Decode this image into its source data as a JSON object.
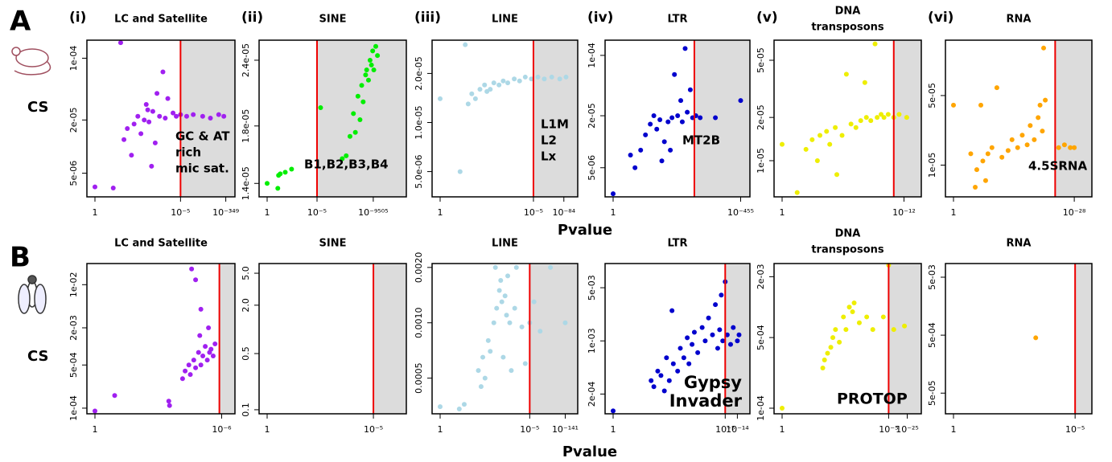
{
  "figure": {
    "rows": [
      {
        "label": "A",
        "group": "CS",
        "xlabel": "Pvalue"
      },
      {
        "label": "B",
        "group": "CS",
        "xlabel": "Pvalue"
      }
    ]
  },
  "chart_data": [
    {
      "type": "scatter",
      "panel": "(i)",
      "title": [
        "LC and Satellite"
      ],
      "color": "#a020f0",
      "ylog": true,
      "threshold": 5,
      "annotation": [
        "GC & AT",
        "rich",
        "mic sat."
      ],
      "xlim": [
        0,
        380
      ],
      "xticks": [
        {
          "value": 0,
          "label": "1"
        },
        {
          "value": 5,
          "label": "10⁻⁵"
        },
        {
          "value": 349,
          "label": "10⁻³⁴⁹"
        }
      ],
      "ylim": [
        2.7e-06,
        0.00016
      ],
      "yticks": [
        {
          "value": 5e-06,
          "label": "5e-06"
        },
        {
          "value": 2e-05,
          "label": "2e-05"
        },
        {
          "value": 0.0001,
          "label": "1e-04"
        }
      ],
      "x": [
        0,
        1e-06,
        3e-05,
        0.0001,
        0.0003,
        0.001,
        0.002,
        0.005,
        0.01,
        0.02,
        0.03,
        0.05,
        0.08,
        0.1,
        0.2,
        0.3,
        0.5,
        0.7,
        1,
        2,
        3,
        5,
        10,
        20,
        50,
        100,
        200,
        300,
        0.15,
        0.04
      ],
      "y": [
        3.5e-06,
        3.4e-06,
        0.00015,
        1.2e-05,
        1.6e-05,
        8e-06,
        1.8e-05,
        2.2e-05,
        1.4e-05,
        2e-05,
        3e-05,
        1.9e-05,
        6e-06,
        2.5e-05,
        4e-05,
        2.2e-05,
        7e-05,
        2.1e-05,
        3.5e-05,
        2.4e-05,
        2.2e-05,
        2.3e-05,
        2.2e-05,
        2.3e-05,
        2.2e-05,
        2.1e-05,
        2.3e-05,
        2.2e-05,
        1.1e-05,
        2.6e-05
      ]
    },
    {
      "type": "scatter",
      "panel": "(ii)",
      "title": [
        "SINE"
      ],
      "color": "#00ee00",
      "ylog": true,
      "threshold": 5,
      "annotation": [
        "B1,B2,B3,B4"
      ],
      "xlim": [
        0,
        79000
      ],
      "xticks": [
        {
          "value": 0,
          "label": "1"
        },
        {
          "value": 5,
          "label": "10⁻⁵"
        },
        {
          "value": 9505,
          "label": "10⁻⁹⁵⁰⁵"
        }
      ],
      "ylim": [
        1.32e-05,
        2.62e-05
      ],
      "yticks": [
        {
          "value": 1.4e-05,
          "label": "1.4e-05"
        },
        {
          "value": 1.8e-05,
          "label": "1.8e-05"
        },
        {
          "value": 2.4e-05,
          "label": "2.4e-05"
        }
      ],
      "x": [
        0,
        1e-06,
        2e-06,
        8e-06,
        0.0002,
        0.004,
        10,
        300,
        500,
        800,
        1200,
        1500,
        2000,
        2500,
        3000,
        3500,
        4500,
        5000,
        6000,
        7000,
        8000,
        9000,
        10000,
        12000,
        14000
      ],
      "y": [
        1.4e-05,
        1.37e-05,
        1.45e-05,
        1.46e-05,
        1.47e-05,
        1.49e-05,
        1.95e-05,
        1.56e-05,
        1.58e-05,
        1.72e-05,
        1.9e-05,
        1.75e-05,
        2.05e-05,
        1.85e-05,
        2.15e-05,
        2e-05,
        2.25e-05,
        2.3e-05,
        2.2e-05,
        2.4e-05,
        2.35e-05,
        2.5e-05,
        2.3e-05,
        2.55e-05,
        2.45e-05
      ]
    },
    {
      "type": "scatter",
      "panel": "(iii)",
      "title": [
        "LINE"
      ],
      "color": "#add8e6",
      "ylog": true,
      "threshold": 5,
      "annotation": [
        "L1M",
        "L2",
        "Lx"
      ],
      "xlim": [
        0,
        133
      ],
      "xticks": [
        {
          "value": 0,
          "label": "1"
        },
        {
          "value": 5,
          "label": "10⁻⁵"
        },
        {
          "value": 84,
          "label": "10⁻⁸⁴"
        }
      ],
      "ylim": [
        3.5e-06,
        3.2e-05
      ],
      "yticks": [
        {
          "value": 5e-06,
          "label": "5.0e-06"
        },
        {
          "value": 1e-05,
          "label": "1.0e-05"
        },
        {
          "value": 2e-05,
          "label": "2.0e-05"
        }
      ],
      "x": [
        0,
        1e-06,
        1e-05,
        3e-05,
        0.0001,
        0.0003,
        0.001,
        0.003,
        0.005,
        0.01,
        0.02,
        0.05,
        0.1,
        0.2,
        0.5,
        1,
        2,
        4,
        8,
        15,
        30,
        60,
        100
      ],
      "y": [
        1.4e-05,
        5e-06,
        3e-05,
        1.3e-05,
        1.5e-05,
        1.4e-05,
        1.6e-05,
        1.7e-05,
        1.55e-05,
        1.6e-05,
        1.75e-05,
        1.7e-05,
        1.8e-05,
        1.75e-05,
        1.85e-05,
        1.8e-05,
        1.9e-05,
        1.85e-05,
        1.9e-05,
        1.85e-05,
        1.9e-05,
        1.85e-05,
        1.9e-05
      ]
    },
    {
      "type": "scatter",
      "panel": "(iv)",
      "title": [
        "LTR"
      ],
      "color": "#0000cd",
      "ylog": true,
      "threshold": 5,
      "annotation": [
        "MT2B"
      ],
      "xlim": [
        0,
        500
      ],
      "xticks": [
        {
          "value": 0,
          "label": "1"
        },
        {
          "value": 455,
          "label": "10⁻⁴⁵⁵"
        }
      ],
      "ylim": [
        2.3e-06,
        0.00015
      ],
      "yticks": [
        {
          "value": 5e-06,
          "label": "5e-06"
        },
        {
          "value": 2e-05,
          "label": "2e-05"
        },
        {
          "value": 0.0001,
          "label": "1e-04"
        }
      ],
      "x": [
        0,
        1e-06,
        1e-05,
        0.0001,
        0.0005,
        0.002,
        0.005,
        0.01,
        0.02,
        0.03,
        0.05,
        0.1,
        0.15,
        0.2,
        0.3,
        0.5,
        0.8,
        1,
        1.5,
        2,
        3,
        4,
        6,
        10,
        50,
        455
      ],
      "y": [
        2.5e-06,
        7e-06,
        5e-06,
        8e-06,
        1.2e-05,
        1.6e-05,
        2e-05,
        1.4e-05,
        1.8e-05,
        6e-06,
        1e-05,
        1.7e-05,
        8e-06,
        1.9e-05,
        6e-05,
        2e-05,
        3e-05,
        1.7e-05,
        0.00012,
        2.2e-05,
        4e-05,
        1.9e-05,
        2e-05,
        1.9e-05,
        1.9e-05,
        3e-05
      ]
    },
    {
      "type": "scatter",
      "panel": "(v)",
      "title": [
        "DNA",
        "transposons"
      ],
      "color": "#eeee00",
      "ylog": true,
      "threshold": 5,
      "xlim": [
        0,
        25
      ],
      "xticks": [
        {
          "value": 0,
          "label": "1"
        },
        {
          "value": 12,
          "label": "10⁻¹²"
        }
      ],
      "ylim": [
        5.6e-06,
        6.9e-05
      ],
      "yticks": [
        {
          "value": 1e-05,
          "label": "1e-05"
        },
        {
          "value": 2e-05,
          "label": "2e-05"
        },
        {
          "value": 5e-05,
          "label": "5e-05"
        }
      ],
      "x": [
        0,
        1e-08,
        1e-06,
        1e-05,
        5e-05,
        0.0001,
        0.0005,
        0.001,
        0.003,
        0.004,
        0.01,
        0.02,
        0.04,
        0.08,
        0.15,
        0.25,
        0.3,
        0.5,
        0.8,
        1,
        1.5,
        2,
        3,
        5,
        8,
        15
      ],
      "y": [
        1.3e-05,
        6e-06,
        1.2e-05,
        1.4e-05,
        1e-05,
        1.5e-05,
        1.6e-05,
        1.3e-05,
        1.7e-05,
        8e-06,
        1.5e-05,
        4e-05,
        1.8e-05,
        1.7e-05,
        1.9e-05,
        3.5e-05,
        2e-05,
        1.9e-05,
        6.5e-05,
        2e-05,
        2.1e-05,
        2e-05,
        2.1e-05,
        2e-05,
        2.1e-05,
        2e-05
      ]
    },
    {
      "type": "scatter",
      "panel": "(vi)",
      "title": [
        "RNA"
      ],
      "color": "#ffa500",
      "ylog": true,
      "threshold": 5,
      "annotation": [
        "4.5SRNA"
      ],
      "xlim": [
        0,
        60
      ],
      "xticks": [
        {
          "value": 0,
          "label": "1"
        },
        {
          "value": 28,
          "label": "10⁻²⁸"
        }
      ],
      "ylim": [
        4.8e-06,
        0.00018
      ],
      "yticks": [
        {
          "value": 1e-05,
          "label": "1e-05"
        },
        {
          "value": 5e-05,
          "label": "5e-05"
        }
      ],
      "x": [
        0,
        1e-07,
        1e-06,
        2e-06,
        1e-05,
        2e-05,
        5e-05,
        0.0001,
        0.0003,
        0.001,
        0.003,
        0.01,
        0.02,
        0.05,
        0.1,
        0.2,
        0.3,
        0.5,
        0.8,
        1,
        1.3,
        1.5,
        1.8,
        7,
        12,
        20,
        28
      ],
      "y": [
        4e-05,
        1.3e-05,
        6e-06,
        9e-06,
        4e-05,
        1.1e-05,
        7e-06,
        1.3e-05,
        1.5e-05,
        6e-05,
        1.2e-05,
        1.4e-05,
        1.8e-05,
        1.5e-05,
        2e-05,
        1.6e-05,
        2.5e-05,
        1.8e-05,
        3e-05,
        4e-05,
        2.2e-05,
        0.00015,
        4.5e-05,
        1.5e-05,
        1.6e-05,
        1.5e-05,
        1.5e-05
      ]
    },
    {
      "type": "scatter",
      "title": [
        "LC and Satellite"
      ],
      "color": "#a020f0",
      "ylog": true,
      "threshold": 5,
      "xlim": [
        0,
        9
      ],
      "xticks": [
        {
          "value": 0,
          "label": "1"
        },
        {
          "value": 6,
          "label": "10⁻⁶"
        }
      ],
      "ylim": [
        8.1e-05,
        0.022
      ],
      "yticks": [
        {
          "value": 0.0001,
          "label": "1e-04"
        },
        {
          "value": 0.0005,
          "label": "5e-04"
        },
        {
          "value": 0.002,
          "label": "2e-03"
        },
        {
          "value": 0.01,
          "label": "1e-02"
        }
      ],
      "x": [
        0,
        5e-08,
        0.027,
        0.03,
        0.15,
        0.2,
        0.3,
        0.35,
        0.5,
        0.6,
        0.8,
        0.9,
        1,
        1.2,
        1.5,
        1.8,
        2,
        2.2,
        2.5,
        3,
        3.5,
        0.4,
        0.6,
        1
      ],
      "y": [
        9e-05,
        0.00016,
        0.00013,
        0.00011,
        0.0003,
        0.0004,
        0.0005,
        0.00035,
        0.0006,
        0.00045,
        0.0008,
        0.0015,
        0.0005,
        0.0007,
        0.001,
        0.0006,
        0.002,
        0.0008,
        0.0009,
        0.0007,
        0.0011,
        0.018,
        0.012,
        0.004
      ]
    },
    {
      "type": "scatter",
      "title": [
        "SINE"
      ],
      "color": "#00ee00",
      "ylog": true,
      "threshold": 5,
      "xlim": [
        0,
        41
      ],
      "xticks": [
        {
          "value": 0,
          "label": "1"
        },
        {
          "value": 5,
          "label": "10⁻⁵"
        }
      ],
      "ylim": [
        0.089,
        6.6
      ],
      "yticks": [
        0.1,
        0.5,
        {
          "value": 2,
          "label": "2.0"
        },
        {
          "value": 5,
          "label": "5.0"
        }
      ],
      "x": [],
      "y": []
    },
    {
      "type": "scatter",
      "title": [
        "LINE"
      ],
      "color": "#add8e6",
      "ylog": true,
      "threshold": 5,
      "xlim": [
        0,
        200
      ],
      "xticks": [
        {
          "value": 0,
          "label": "1"
        },
        {
          "value": 5,
          "label": "10⁻⁵"
        },
        {
          "value": 141,
          "label": "10⁻¹⁴¹"
        }
      ],
      "ylim": [
        0.00032,
        0.0021
      ],
      "yticks": [
        0.0005,
        {
          "value": 0.001,
          "label": "0.0010"
        },
        {
          "value": 0.002,
          "label": "0.0020"
        }
      ],
      "x": [
        0,
        1e-06,
        1e-05,
        0.001,
        0.002,
        0.003,
        0.005,
        0.01,
        0.015,
        0.03,
        0.04,
        0.05,
        0.08,
        0.1,
        0.12,
        0.15,
        0.2,
        0.25,
        0.3,
        0.4,
        0.5,
        0.8,
        1,
        2,
        3,
        5,
        8,
        15,
        40,
        141
      ],
      "y": [
        0.00035,
        0.00034,
        0.00036,
        0.00055,
        0.00045,
        0.00065,
        0.0005,
        0.0008,
        0.0007,
        0.001,
        0.002,
        0.0012,
        0.0015,
        0.0017,
        0.0013,
        0.00065,
        0.0014,
        0.0011,
        0.0018,
        0.001,
        0.00055,
        0.0012,
        0.002,
        0.00095,
        0.0006,
        0.001,
        0.0013,
        0.0009,
        0.002,
        0.001
      ]
    },
    {
      "type": "scatter",
      "title": [
        "LTR"
      ],
      "color": "#0000cd",
      "ylog": true,
      "threshold": 5,
      "annotation": [
        "Gypsy",
        "Invader"
      ],
      "xlim": [
        0,
        20
      ],
      "xticks": [
        {
          "value": 0,
          "label": "1"
        },
        {
          "value": 5,
          "label": "10⁻⁵"
        },
        {
          "value": 14,
          "label": "10⁻¹⁴"
        }
      ],
      "ylim": [
        0.00011,
        0.0104
      ],
      "yticks": [
        {
          "value": 0.0002,
          "label": "2e-04"
        },
        {
          "value": 0.001,
          "label": "1e-03"
        },
        {
          "value": 0.005,
          "label": "5e-03"
        }
      ],
      "x": [
        0,
        0.0001,
        0.0002,
        0.0005,
        0.001,
        0.002,
        0.003,
        0.005,
        0.008,
        0.01,
        0.02,
        0.03,
        0.05,
        0.08,
        0.1,
        0.15,
        0.2,
        0.3,
        0.5,
        0.7,
        1,
        1.5,
        2,
        2.5,
        3,
        3.5,
        4,
        5,
        6,
        8,
        10,
        14,
        16
      ],
      "y": [
        0.00012,
        0.0003,
        0.00025,
        0.0004,
        0.00035,
        0.00022,
        0.0006,
        0.0003,
        0.0025,
        0.0005,
        0.0004,
        0.0008,
        0.0006,
        0.0011,
        0.0005,
        0.0009,
        0.0013,
        0.0007,
        0.0015,
        0.001,
        0.002,
        0.0012,
        0.003,
        0.0008,
        0.0014,
        0.004,
        0.001,
        0.006,
        0.0012,
        0.0009,
        0.0015,
        0.001,
        0.0012
      ]
    },
    {
      "type": "scatter",
      "title": [
        "DNA",
        "transposons"
      ],
      "color": "#eeee00",
      "ylog": true,
      "threshold": 5,
      "annotation": [
        "PROTOP"
      ],
      "xlim": [
        0,
        40
      ],
      "xticks": [
        {
          "value": 0,
          "label": "1"
        },
        {
          "value": 5,
          "label": "10⁻⁵"
        },
        {
          "value": 25,
          "label": "10⁻²⁵"
        }
      ],
      "ylim": [
        8.8e-05,
        0.0027
      ],
      "yticks": [
        {
          "value": 0.0001,
          "label": "1e-04"
        },
        {
          "value": 0.0005,
          "label": "5e-04"
        },
        {
          "value": 0.002,
          "label": "2e-03"
        }
      ],
      "x": [
        0,
        0.00033,
        0.0005,
        0.001,
        0.002,
        0.003,
        0.005,
        0.01,
        0.02,
        0.03,
        0.05,
        0.08,
        0.1,
        0.2,
        0.5,
        1,
        3,
        5,
        8,
        20
      ],
      "y": [
        0.0001,
        0.00025,
        0.0003,
        0.00035,
        0.0004,
        0.0005,
        0.0006,
        0.00045,
        0.0008,
        0.0006,
        0.001,
        0.0009,
        0.0011,
        0.0007,
        0.0008,
        0.0006,
        0.0008,
        0.0026,
        0.0006,
        0.00065
      ]
    },
    {
      "type": "scatter",
      "title": [
        "RNA"
      ],
      "color": "#ffa500",
      "ylog": true,
      "threshold": 5,
      "xlim": [
        0,
        10
      ],
      "xticks": [
        {
          "value": 0,
          "label": "1"
        },
        {
          "value": 5,
          "label": "10⁻⁵"
        }
      ],
      "ylim": [
        2.2e-05,
        0.0086
      ],
      "yticks": [
        {
          "value": 5e-05,
          "label": "5e-05"
        },
        {
          "value": 0.0005,
          "label": "5e-04"
        },
        {
          "value": 0.005,
          "label": "5e-03"
        }
      ],
      "x": [
        0.1
      ],
      "y": [
        0.00045
      ]
    }
  ]
}
